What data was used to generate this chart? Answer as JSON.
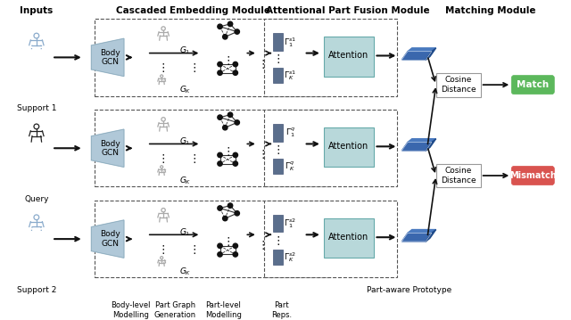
{
  "title_inputs": "Inputs",
  "title_cem": "Cascaded Embedding Module",
  "title_apfm": "Attentional Part Fusion Module",
  "title_mm": "Matching Module",
  "label_support1": "Support 1",
  "label_query": "Query",
  "label_support2": "Support 2",
  "label_body_gcn": "Body\nGCN",
  "label_attention": "Attention",
  "label_cosine1": "Cosine\nDistance",
  "label_cosine2": "Cosine\nDistance",
  "label_match": "Match",
  "label_mismatch": "Mismatch",
  "label_part_proto": "Part-aware Prototype",
  "label_blm": "Body-level\nModelling",
  "label_pgg": "Part Graph\nGeneration",
  "label_plm": "Part-level\nModelling",
  "label_part_reps": "Part\nReps.",
  "color_bg": "#ffffff",
  "color_gcn": "#b0c8d8",
  "color_attention_box": "#b8d8da",
  "color_match_green": "#5cb85c",
  "color_mismatch_red": "#d9534f",
  "color_blue_3d_front": "#3a67ad",
  "color_blue_3d_top": "#4a7abf",
  "color_blue_3d_right": "#1e4a8a",
  "color_part_bar": "#5a6e8c",
  "color_arrow": "#111111",
  "color_dashed": "#555555",
  "color_skel_light": "#8aabcc",
  "color_skel_dark": "#222222",
  "color_skel_gray": "#aaaaaa",
  "color_node": "#111111",
  "color_edge": "#333333"
}
